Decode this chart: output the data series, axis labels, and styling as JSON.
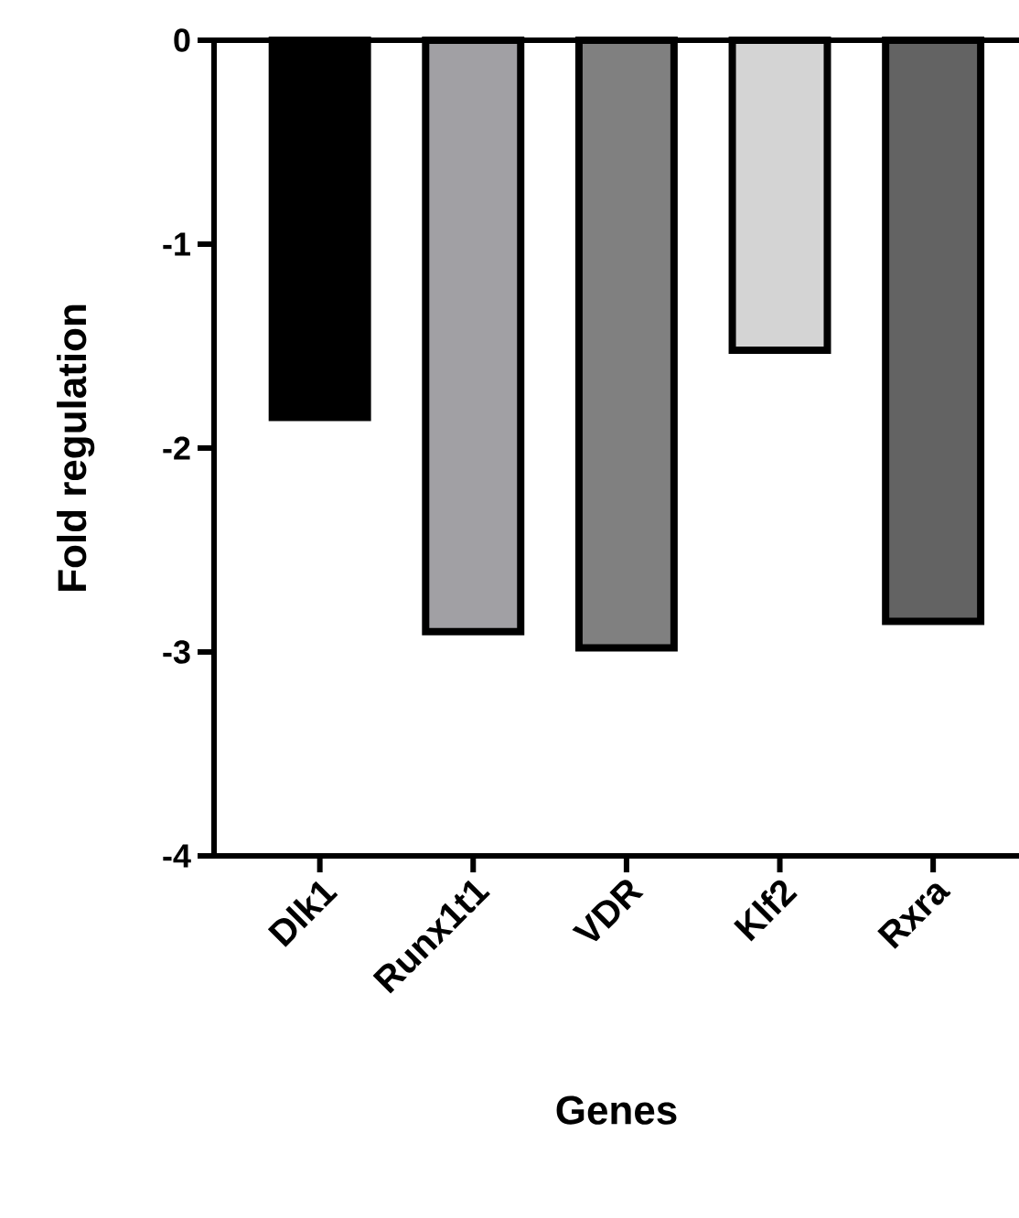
{
  "chart_data": {
    "type": "bar",
    "xlabel": "Genes",
    "ylabel": "Fold regulation",
    "categories": [
      "Dlk1",
      "Runx1t1",
      "VDR",
      "Klf2",
      "Rxra"
    ],
    "values": [
      -1.85,
      -2.9,
      -2.98,
      -1.52,
      -2.85
    ],
    "colors": [
      "#000000",
      "#a1a0a4",
      "#808080",
      "#d4d4d4",
      "#636363"
    ],
    "ylim": [
      -4,
      0
    ],
    "yticks": [
      0,
      -1,
      -2,
      -3,
      -4
    ],
    "grid": false
  }
}
